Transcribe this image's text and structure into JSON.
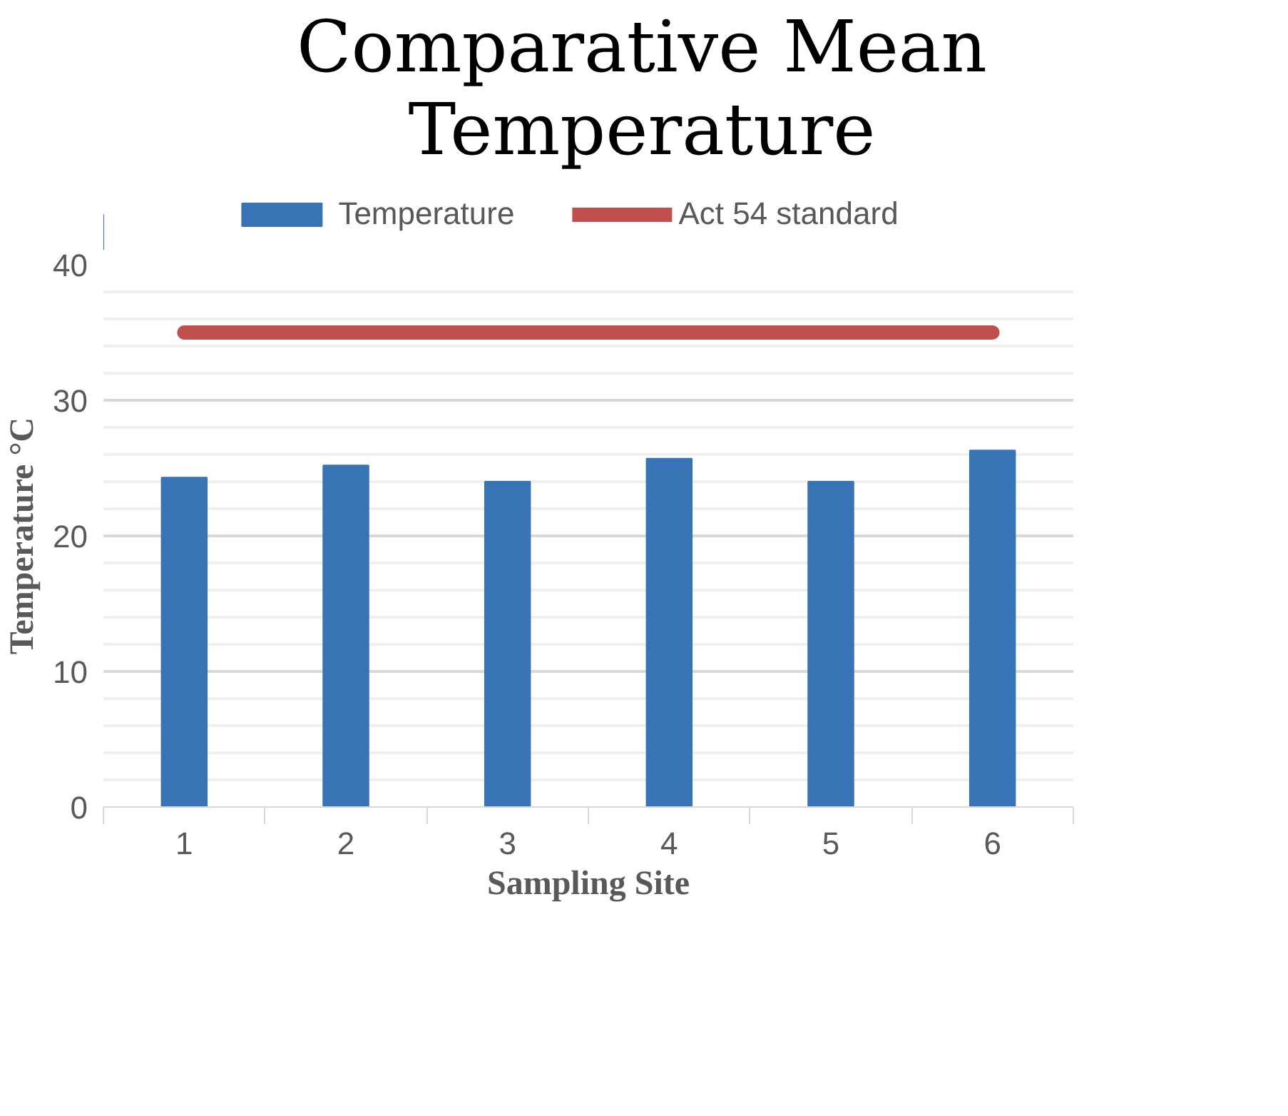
{
  "chart_data": {
    "type": "bar",
    "title": "Comparative Mean Temperature",
    "xlabel": "Sampling Site",
    "ylabel": "Temperature °C",
    "categories": [
      "1",
      "2",
      "3",
      "4",
      "5",
      "6"
    ],
    "series": [
      {
        "name": "Temperature",
        "color": "#3873b6",
        "values": [
          24.3,
          25.2,
          24.0,
          25.7,
          24.0,
          26.3
        ]
      },
      {
        "name": "Act 54 standard",
        "type": "line",
        "color": "#c0504d",
        "values": [
          35,
          35,
          35,
          35,
          35,
          35
        ]
      }
    ],
    "ylim": [
      0,
      40
    ],
    "yticks": [
      0,
      10,
      20,
      30,
      40
    ],
    "grid": "y",
    "legend": "top"
  }
}
